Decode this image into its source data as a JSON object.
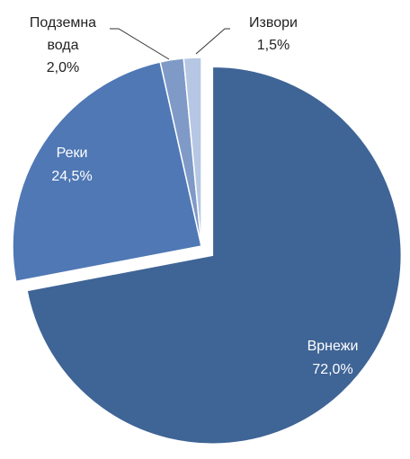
{
  "chart_data": {
    "type": "pie",
    "title": "",
    "slices": [
      {
        "label_lines": [
          "Врнежи"
        ],
        "value": 72.0,
        "value_label": "72,0%",
        "color": "#3f6496",
        "label_color": "#ffffff"
      },
      {
        "label_lines": [
          "Реки"
        ],
        "value": 24.5,
        "value_label": "24,5%",
        "color": "#4f78b5",
        "label_color": "#ffffff"
      },
      {
        "label_lines": [
          "Подземна",
          "вода"
        ],
        "value": 2.0,
        "value_label": "2,0%",
        "color": "#7f9ac7",
        "label_color": "#222222"
      },
      {
        "label_lines": [
          "Извори"
        ],
        "value": 1.5,
        "value_label": "1,5%",
        "color": "#b5c7e3",
        "label_color": "#222222"
      }
    ],
    "exploded_slice": "Врнежи",
    "legend": "none",
    "data_labels": "category-and-percent"
  }
}
